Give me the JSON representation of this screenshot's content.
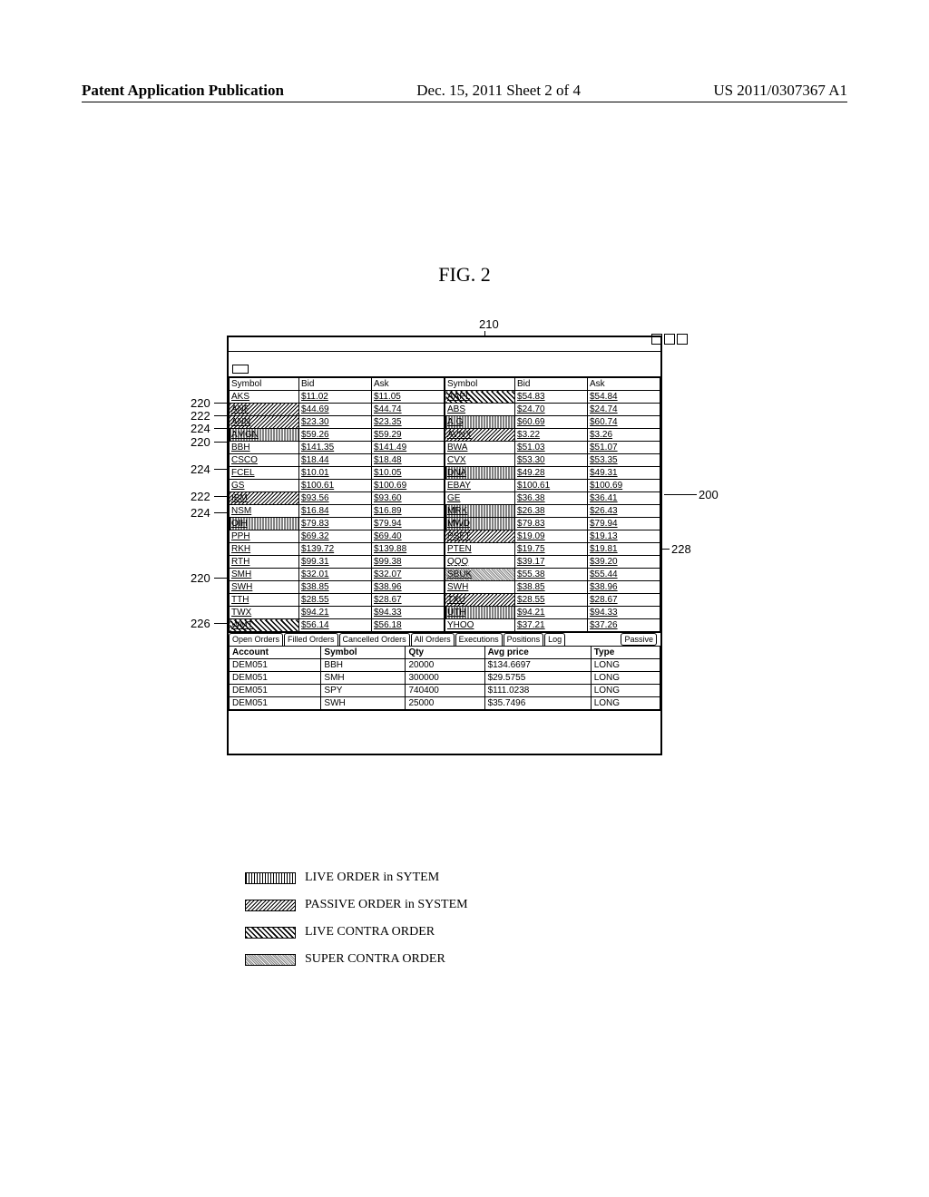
{
  "header": {
    "left": "Patent Application Publication",
    "center": "Dec. 15, 2011  Sheet 2 of 4",
    "right": "US 2011/0307367 A1"
  },
  "figure_title": "FIG. 2",
  "callouts": {
    "c200": "200",
    "c210": "210",
    "c220a": "220",
    "c222a": "222",
    "c224a": "224",
    "c220b": "220",
    "c224b": "224",
    "c222b": "222",
    "c224c": "224",
    "c220c": "220",
    "c226": "226",
    "c228": "228"
  },
  "tables": {
    "headers": [
      "Symbol",
      "Bid",
      "Ask"
    ],
    "left": [
      {
        "sym": "AKS",
        "bid": "$11.02",
        "ask": "$11.05",
        "p": ""
      },
      {
        "sym": "ANF",
        "bid": "$44.69",
        "ask": "$44.74",
        "p": "pass"
      },
      {
        "sym": "ANN",
        "bid": "$23.30",
        "ask": "$23.35",
        "p": "pass"
      },
      {
        "sym": "AMGN",
        "bid": "$59.26",
        "ask": "$59.29",
        "p": "live"
      },
      {
        "sym": "BBH",
        "bid": "$141.35",
        "ask": "$141.49",
        "p": ""
      },
      {
        "sym": "CSCO",
        "bid": "$18.44",
        "ask": "$18.48",
        "p": ""
      },
      {
        "sym": "FCEL",
        "bid": "$10.01",
        "ask": "$10.05",
        "p": ""
      },
      {
        "sym": "GS",
        "bid": "$100.61",
        "ask": "$100.69",
        "p": ""
      },
      {
        "sym": "IBM",
        "bid": "$93.56",
        "ask": "$93.60",
        "p": "pass"
      },
      {
        "sym": "NSM",
        "bid": "$16.84",
        "ask": "$16.89",
        "p": ""
      },
      {
        "sym": "OIH",
        "bid": "$79.83",
        "ask": "$79.94",
        "p": "live"
      },
      {
        "sym": "PPH",
        "bid": "$69.32",
        "ask": "$69.40",
        "p": ""
      },
      {
        "sym": "RKH",
        "bid": "$139.72",
        "ask": "$139.88",
        "p": ""
      },
      {
        "sym": "RTH",
        "bid": "$99.31",
        "ask": "$99.38",
        "p": ""
      },
      {
        "sym": "SMH",
        "bid": "$32.01",
        "ask": "$32.07",
        "p": ""
      },
      {
        "sym": "SWH",
        "bid": "$38.85",
        "ask": "$38.96",
        "p": ""
      },
      {
        "sym": "TTH",
        "bid": "$28.55",
        "ask": "$28.67",
        "p": ""
      },
      {
        "sym": "TWX",
        "bid": "$94.21",
        "ask": "$94.33",
        "p": ""
      },
      {
        "sym": "WMT",
        "bid": "$56.14",
        "ask": "$56.18",
        "p": "contra"
      }
    ],
    "right": [
      {
        "sym": "AAPL",
        "bid": "$54.83",
        "ask": "$54.84",
        "p": "contra"
      },
      {
        "sym": "ABS",
        "bid": "$24.70",
        "ask": "$24.74",
        "p": ""
      },
      {
        "sym": "AIG",
        "bid": "$60.69",
        "ask": "$60.74",
        "p": "live"
      },
      {
        "sym": "AVNX",
        "bid": "$3.22",
        "ask": "$3.26",
        "p": "pass"
      },
      {
        "sym": "BWA",
        "bid": "$51.03",
        "ask": "$51.07",
        "p": ""
      },
      {
        "sym": "CVX",
        "bid": "$53.30",
        "ask": "$53.35",
        "p": ""
      },
      {
        "sym": "DNA",
        "bid": "$49.28",
        "ask": "$49.31",
        "p": "live"
      },
      {
        "sym": "EBAY",
        "bid": "$100.61",
        "ask": "$100.69",
        "p": ""
      },
      {
        "sym": "GE",
        "bid": "$36.38",
        "ask": "$36.41",
        "p": ""
      },
      {
        "sym": "MRK",
        "bid": "$26.38",
        "ask": "$26.43",
        "p": "live"
      },
      {
        "sym": "MWD",
        "bid": "$79.83",
        "ask": "$79.94",
        "p": "live"
      },
      {
        "sym": "PSFT",
        "bid": "$19.09",
        "ask": "$19.13",
        "p": "pass"
      },
      {
        "sym": "PTEN",
        "bid": "$19.75",
        "ask": "$19.81",
        "p": ""
      },
      {
        "sym": "QQQ",
        "bid": "$39.17",
        "ask": "$39.20",
        "p": ""
      },
      {
        "sym": "SBUK",
        "bid": "$55.38",
        "ask": "$55.44",
        "p": "super"
      },
      {
        "sym": "SWH",
        "bid": "$38.85",
        "ask": "$38.96",
        "p": ""
      },
      {
        "sym": "TXU",
        "bid": "$28.55",
        "ask": "$28.67",
        "p": "pass"
      },
      {
        "sym": "UTH",
        "bid": "$94.21",
        "ask": "$94.33",
        "p": "live"
      },
      {
        "sym": "YHOO",
        "bid": "$37.21",
        "ask": "$37.26",
        "p": ""
      }
    ]
  },
  "tabs": [
    "Open Orders",
    "Filled Orders",
    "Cancelled Orders",
    "All Orders",
    "Executions",
    "Positions",
    "Log"
  ],
  "tabs_right": "Passive",
  "orders": {
    "headers": [
      "Account",
      "Symbol",
      "Qty",
      "Avg price",
      "Type"
    ],
    "rows": [
      [
        "DEM051",
        "BBH",
        "20000",
        "$134.6697",
        "LONG"
      ],
      [
        "DEM051",
        "SMH",
        "300000",
        "$29.5755",
        "LONG"
      ],
      [
        "DEM051",
        "SPY",
        "740400",
        "$111.0238",
        "LONG"
      ],
      [
        "DEM051",
        "SWH",
        "25000",
        "$35.7496",
        "LONG"
      ]
    ]
  },
  "legend": [
    {
      "p": "live",
      "label": "LIVE ORDER in SYTEM"
    },
    {
      "p": "pass",
      "label": "PASSIVE ORDER in SYSTEM"
    },
    {
      "p": "contra",
      "label": "LIVE CONTRA ORDER"
    },
    {
      "p": "super",
      "label": "SUPER CONTRA ORDER"
    }
  ]
}
